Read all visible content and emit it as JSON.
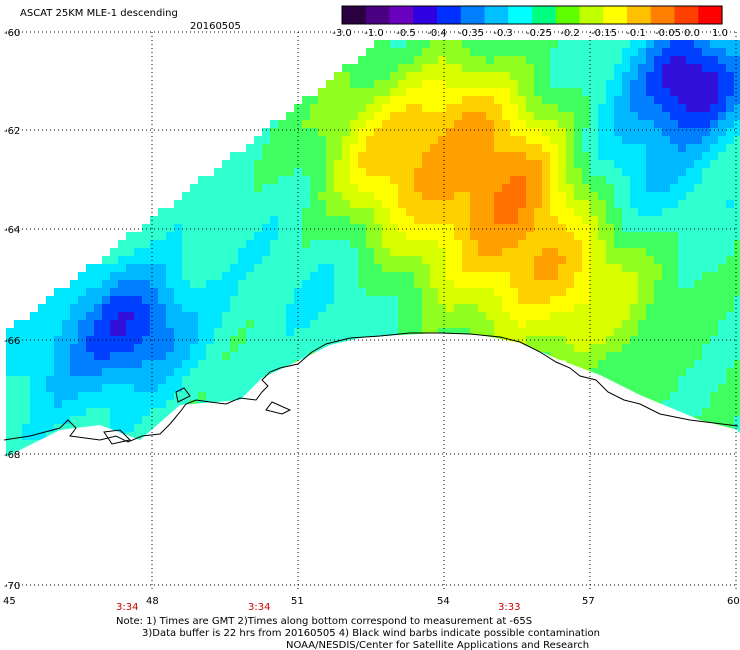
{
  "header": {
    "title": "ASCAT 25KM MLE-1 descending",
    "date": "20160505"
  },
  "colorbar": {
    "labels": [
      "-3.0",
      "-1.0",
      "-0.5",
      "-0.4",
      "-0.35",
      "-0.3",
      "-0.25",
      "-0.2",
      "-0.15",
      "-0.1",
      "-0.05",
      "0.0",
      "1.0"
    ],
    "colors": [
      "#2a0040",
      "#4a0080",
      "#6a00c0",
      "#3000e0",
      "#0030ff",
      "#0080ff",
      "#00c0ff",
      "#00ffff",
      "#00ff80",
      "#60ff00",
      "#c0ff00",
      "#ffff00",
      "#ffc000",
      "#ff8000",
      "#ff4000",
      "#ff0000"
    ]
  },
  "axes": {
    "lat_labels": [
      "-60",
      "-62",
      "-64",
      "-66",
      "-68",
      "-70"
    ],
    "lon_labels": [
      "45",
      "48",
      "51",
      "54",
      "57",
      "60"
    ]
  },
  "time_labels": [
    "3:34",
    "3:34",
    "3:33"
  ],
  "footer": {
    "line1": "Note: 1) Times are GMT 2)Times along bottom correspond to measurement at -65S",
    "line2": "3)Data buffer is 22 hrs from 20160505 4) Black wind barbs indicate possible contamination",
    "line3": "NOAA/NESDIS/Center for Satellite Applications and Research"
  }
}
